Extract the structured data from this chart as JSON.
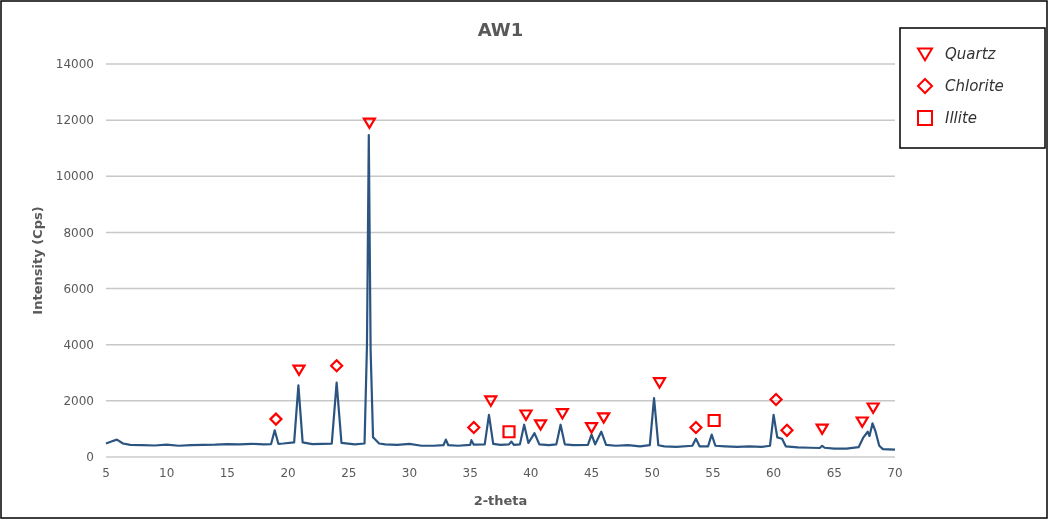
{
  "chart_data": {
    "type": "line",
    "title": "AW1",
    "xlabel": "2-theta",
    "ylabel": "Intensity (Cps)",
    "xlim": [
      5,
      70
    ],
    "xticks": [
      5,
      10,
      15,
      20,
      25,
      30,
      35,
      40,
      45,
      50,
      55,
      60,
      65,
      70
    ],
    "ylim": [
      0,
      14000
    ],
    "yticks": [
      0,
      2000,
      4000,
      6000,
      8000,
      10000,
      12000,
      14000
    ],
    "grid": "y",
    "legend": "top right",
    "series": [
      {
        "color": "#2b5580",
        "marker": "none",
        "line_style": "solid",
        "x": [
          5,
          5.5,
          5.9,
          6.4,
          7,
          8,
          9,
          10,
          11,
          12,
          13,
          14,
          15,
          16,
          17,
          18,
          18.6,
          18.9,
          19.2,
          19.6,
          20.5,
          20.85,
          21.2,
          22,
          23.6,
          24.0,
          24.4,
          25.5,
          26.3,
          26.5,
          26.65,
          26.8,
          27.0,
          27.5,
          28,
          29,
          30,
          31,
          32,
          32.8,
          33,
          33.2,
          34,
          35,
          35.1,
          35.3,
          36.2,
          36.55,
          36.9,
          37.5,
          38.2,
          38.4,
          38.6,
          39.1,
          39.45,
          39.8,
          40.3,
          40.7,
          41.5,
          42.1,
          42.45,
          42.8,
          43.5,
          44.7,
          45.0,
          45.3,
          45.8,
          46.2,
          47,
          48,
          49,
          49.8,
          50.15,
          50.5,
          51,
          52,
          53.3,
          53.6,
          53.9,
          54.6,
          54.9,
          55.2,
          56,
          57,
          58,
          59,
          59.7,
          60.0,
          60.3,
          60.7,
          61,
          62,
          63,
          63.8,
          64.0,
          64.2,
          65,
          66,
          67,
          67.4,
          67.75,
          67.9,
          68.15,
          68.4,
          68.7,
          69,
          70
        ],
        "values": [
          480,
          560,
          620,
          480,
          430,
          420,
          410,
          440,
          400,
          420,
          430,
          440,
          460,
          450,
          470,
          450,
          460,
          950,
          470,
          480,
          520,
          2550,
          520,
          460,
          480,
          2650,
          500,
          450,
          480,
          4000,
          11470,
          3800,
          700,
          480,
          450,
          430,
          470,
          400,
          400,
          420,
          620,
          420,
          400,
          430,
          600,
          440,
          450,
          1500,
          470,
          430,
          450,
          550,
          430,
          450,
          1150,
          500,
          850,
          450,
          420,
          450,
          1150,
          450,
          420,
          430,
          800,
          450,
          900,
          430,
          400,
          420,
          380,
          420,
          2100,
          420,
          380,
          360,
          400,
          650,
          380,
          380,
          800,
          400,
          380,
          360,
          380,
          360,
          400,
          1500,
          700,
          650,
          380,
          340,
          330,
          320,
          400,
          330,
          300,
          300,
          350,
          700,
          900,
          750,
          1200,
          900,
          400,
          280,
          260
        ]
      },
      {
        "type": "scatter",
        "name": "Quartz",
        "color": "#ff0000",
        "marker": "triangle",
        "x": [
          20.9,
          26.7,
          36.7,
          39.6,
          40.8,
          42.6,
          45.0,
          46.0,
          50.6,
          64.0,
          67.3,
          68.2
        ],
        "values": [
          3100,
          11900,
          2000,
          1500,
          1150,
          1550,
          1050,
          1400,
          2650,
          1000,
          1250,
          1750
        ]
      },
      {
        "type": "scatter",
        "name": "Chlorite",
        "color": "#ff0000",
        "marker": "diamond",
        "x": [
          19.0,
          24.0,
          35.3,
          53.6,
          60.2,
          61.1
        ],
        "values": [
          1350,
          3250,
          1050,
          1050,
          2050,
          950
        ]
      },
      {
        "type": "scatter",
        "name": "Illite",
        "color": "#ff0000",
        "marker": "square",
        "x": [
          38.2,
          55.1
        ],
        "values": [
          900,
          1300
        ]
      }
    ]
  }
}
